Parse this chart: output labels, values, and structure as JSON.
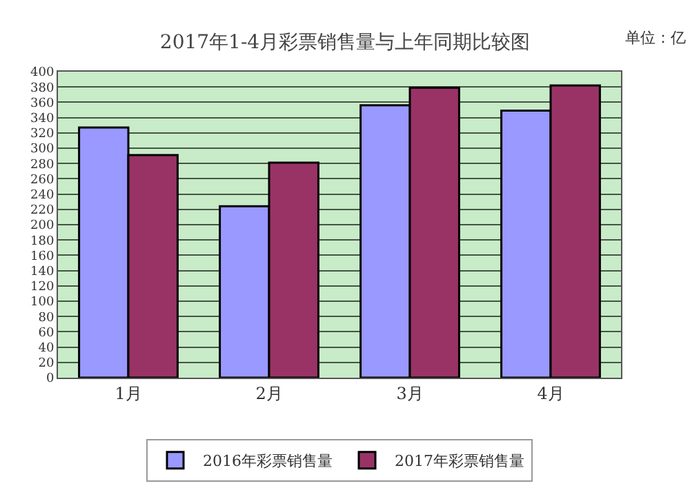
{
  "chart_data": {
    "type": "bar",
    "title": "2017年1-4月彩票销售量与上年同期比较图",
    "annotations": [
      "单位：亿"
    ],
    "categories": [
      "1月",
      "2月",
      "3月",
      "4月"
    ],
    "series": [
      {
        "name": "2016年彩票销售量",
        "color": "#9999ff",
        "values": [
          327,
          224,
          356,
          349
        ]
      },
      {
        "name": "2017年彩票销售量",
        "color": "#993366",
        "values": [
          291,
          281,
          379,
          382
        ]
      }
    ],
    "ylim": [
      0,
      400
    ],
    "yticks": [
      0,
      20,
      40,
      60,
      80,
      100,
      120,
      140,
      160,
      180,
      200,
      220,
      240,
      260,
      280,
      300,
      320,
      340,
      360,
      380,
      400
    ],
    "grid": "y",
    "legend": "bottom"
  }
}
